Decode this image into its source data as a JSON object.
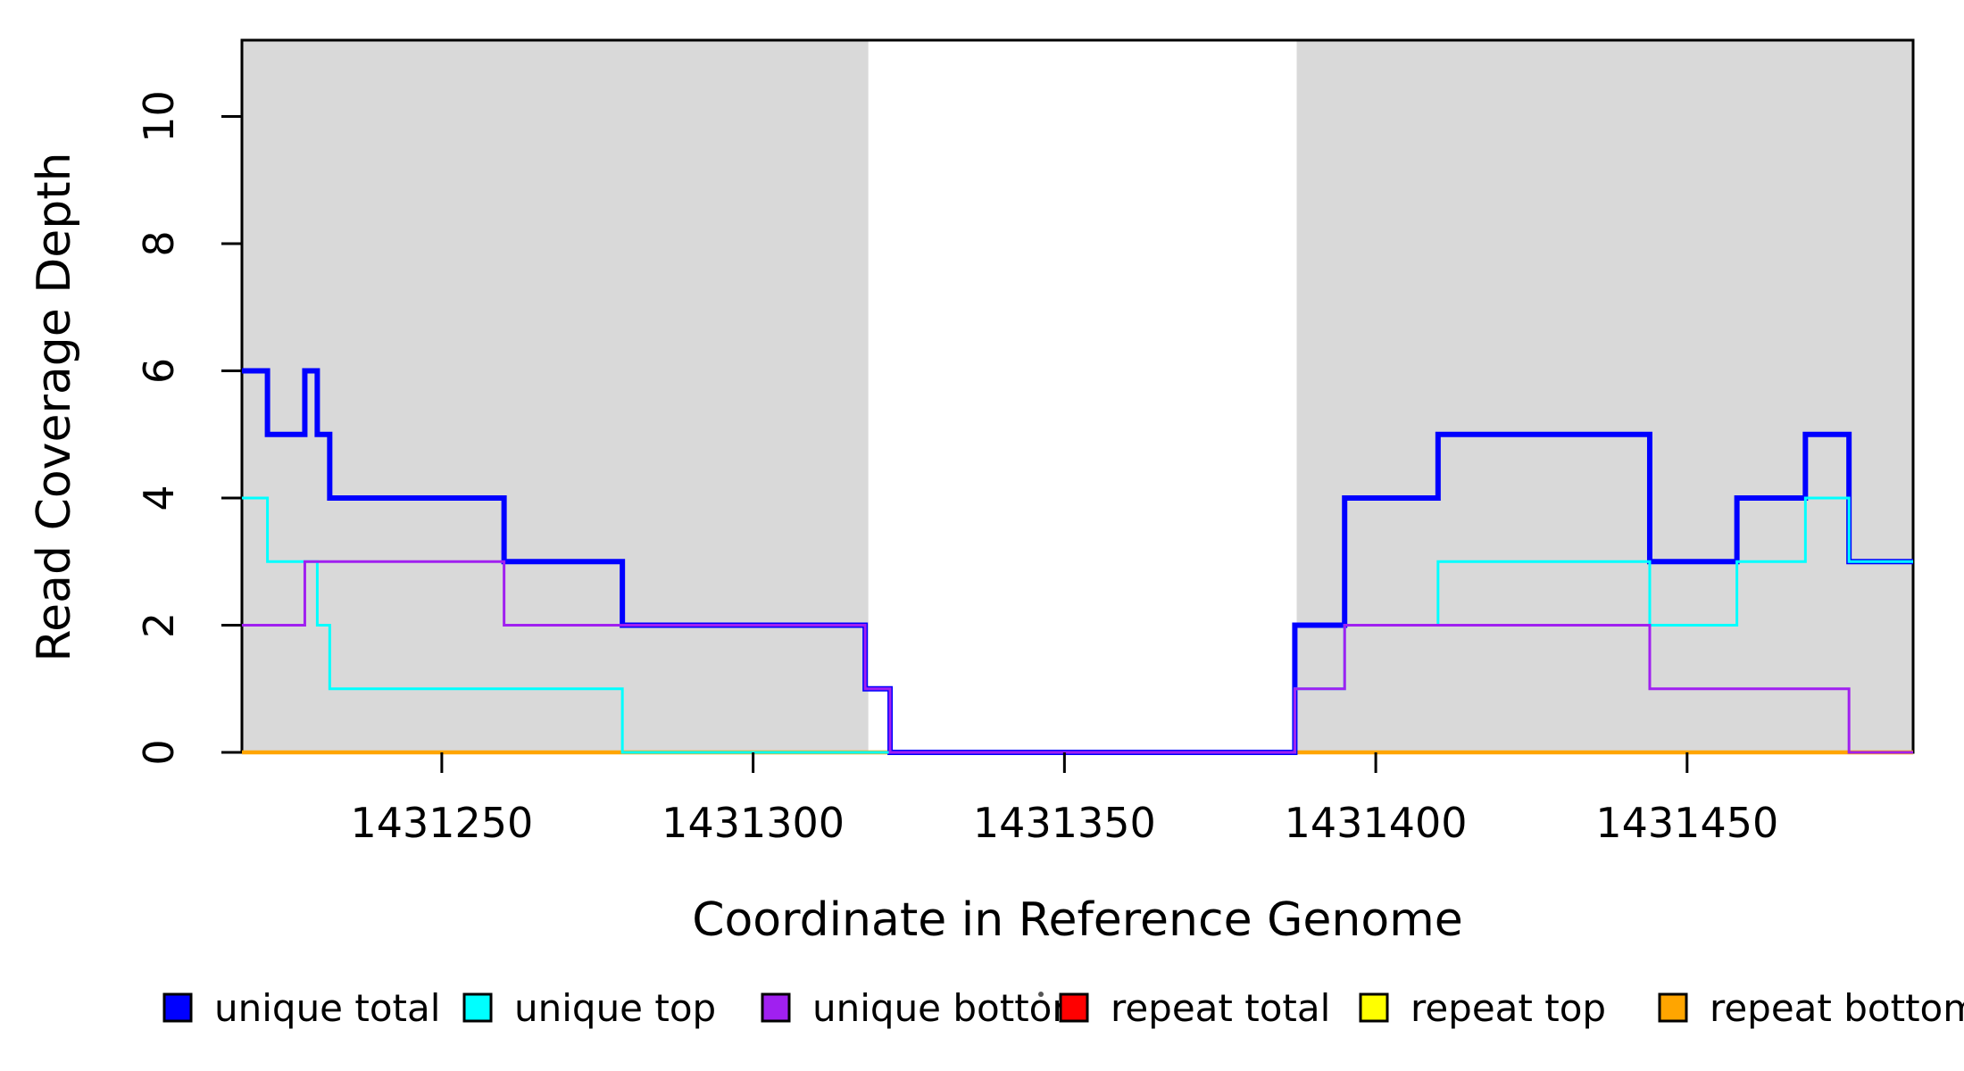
{
  "figure": {
    "title": "",
    "background_color": "#ffffff",
    "plot_background_color": "#ffffff"
  },
  "chart_data": {
    "type": "line",
    "subtype": "step",
    "title": "",
    "xlabel": "Coordinate in Reference Genome",
    "ylabel": "Read Coverage Depth",
    "xlim": [
      1431217.9,
      1431486.3
    ],
    "ylim": [
      0,
      11.2
    ],
    "x_ticks": [
      1431250,
      1431300,
      1431350,
      1431400,
      1431450
    ],
    "y_ticks": [
      0,
      2,
      4,
      6,
      8,
      10
    ],
    "grid": false,
    "shaded_region_color": "#D9D9D9",
    "shaded_regions": [
      {
        "x0": 1431217.9,
        "x1": 1431318.5
      },
      {
        "x0": 1431387.3,
        "x1": 1431486.3
      }
    ],
    "x_end": 1431486.3,
    "series": [
      {
        "name": "repeat total",
        "color": "#FF0000",
        "line_width": 4,
        "steps": [
          [
            1431217.9,
            0
          ]
        ]
      },
      {
        "name": "repeat top",
        "color": "#FFFF00",
        "line_width": 4,
        "steps": [
          [
            1431217.9,
            0
          ]
        ]
      },
      {
        "name": "repeat bottom",
        "color": "#FFA500",
        "line_width": 4.5,
        "steps": [
          [
            1431217.9,
            0
          ]
        ]
      },
      {
        "name": "unique total",
        "color": "#0000FF",
        "line_width": 6,
        "steps": [
          [
            1431217.9,
            6
          ],
          [
            1431222,
            5
          ],
          [
            1431228,
            6
          ],
          [
            1431230,
            5
          ],
          [
            1431232,
            4
          ],
          [
            1431260,
            3
          ],
          [
            1431279,
            2
          ],
          [
            1431318,
            1
          ],
          [
            1431322,
            0
          ],
          [
            1431387,
            2
          ],
          [
            1431395,
            4
          ],
          [
            1431410,
            5
          ],
          [
            1431444,
            3
          ],
          [
            1431458,
            4
          ],
          [
            1431469,
            5
          ],
          [
            1431476,
            3
          ]
        ]
      },
      {
        "name": "unique top",
        "color": "#00FFFF",
        "line_width": 3,
        "steps": [
          [
            1431217.9,
            4
          ],
          [
            1431222,
            3
          ],
          [
            1431230,
            2
          ],
          [
            1431232,
            1
          ],
          [
            1431279,
            0
          ],
          [
            1431387,
            1
          ],
          [
            1431395,
            2
          ],
          [
            1431410,
            3
          ],
          [
            1431444,
            2
          ],
          [
            1431458,
            3
          ],
          [
            1431469,
            4
          ],
          [
            1431476,
            3
          ]
        ]
      },
      {
        "name": "unique bottom",
        "color": "#A020F0",
        "line_width": 3,
        "steps": [
          [
            1431217.9,
            2
          ],
          [
            1431228,
            3
          ],
          [
            1431260,
            2
          ],
          [
            1431318,
            1
          ],
          [
            1431322,
            0
          ],
          [
            1431387,
            1
          ],
          [
            1431395,
            2
          ],
          [
            1431444,
            1
          ],
          [
            1431476,
            0
          ]
        ]
      }
    ],
    "legend": {
      "position": "bottom",
      "entries": [
        {
          "label": "unique total",
          "color": "#0000FF"
        },
        {
          "label": "unique top",
          "color": "#00FFFF"
        },
        {
          "label": "unique bottom",
          "color": "#A020F0"
        },
        {
          "label": "repeat total",
          "color": "#FF0000"
        },
        {
          "label": "repeat top",
          "color": "#FFFF00"
        },
        {
          "label": "repeat bottom",
          "color": "#FFA500"
        }
      ]
    }
  }
}
